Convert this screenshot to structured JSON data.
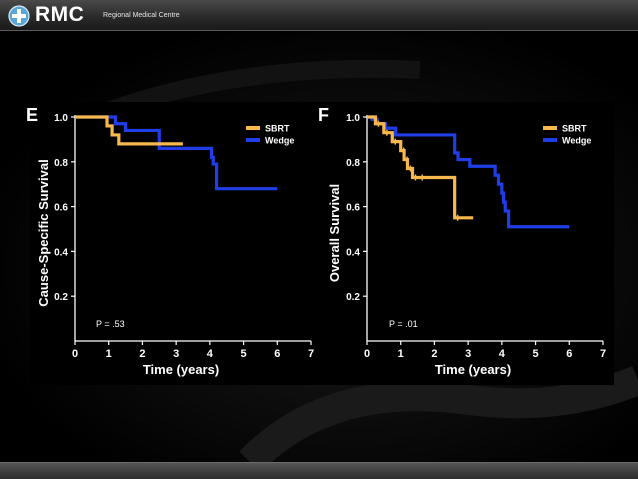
{
  "header": {
    "brand": "RMC",
    "brand_subtitle": "Regional Medical Centre",
    "logo_icon": "cross-badge-icon"
  },
  "theme": {
    "sbrt_color": "#F7B94D",
    "wedge_color": "#1F3EE8",
    "axis_color": "#FFFFFF",
    "background": "#000000"
  },
  "chart_data": [
    {
      "type": "line",
      "step": true,
      "panel_label": "E",
      "ylabel": "Cause-Specific Survival",
      "xlabel": "Time (years)",
      "xlim": [
        0,
        7
      ],
      "ylim": [
        0,
        1.0
      ],
      "xticks": [
        "0",
        "1",
        "2",
        "3",
        "4",
        "5",
        "6",
        "7"
      ],
      "yticks": [
        "0.2",
        "0.4",
        "0.6",
        "0.8",
        "1.0"
      ],
      "pvalue": "P = .53",
      "legend_position": "top-right",
      "series": [
        {
          "name": "SBRT",
          "color": "#F7B94D",
          "x": [
            0,
            0.95,
            1.1,
            1.3,
            2.55,
            3.2
          ],
          "y": [
            1.0,
            0.96,
            0.92,
            0.88,
            0.88,
            0.88
          ]
        },
        {
          "name": "Wedge",
          "color": "#1F3EE8",
          "x": [
            0,
            1.2,
            1.5,
            2.0,
            2.5,
            4.05,
            4.1,
            4.2,
            6.0
          ],
          "y": [
            1.0,
            0.97,
            0.94,
            0.94,
            0.86,
            0.82,
            0.79,
            0.68,
            0.68
          ]
        }
      ]
    },
    {
      "type": "line",
      "step": true,
      "panel_label": "F",
      "ylabel": "Overall Survival",
      "xlabel": "Time (years)",
      "xlim": [
        0,
        7
      ],
      "ylim": [
        0,
        1.0
      ],
      "xticks": [
        "0",
        "1",
        "2",
        "3",
        "4",
        "5",
        "6",
        "7"
      ],
      "yticks": [
        "0.2",
        "0.4",
        "0.6",
        "0.8",
        "1.0"
      ],
      "pvalue": "P = .01",
      "legend_position": "top-right",
      "series": [
        {
          "name": "SBRT",
          "color": "#F7B94D",
          "x": [
            0,
            0.25,
            0.5,
            0.75,
            1.0,
            1.1,
            1.2,
            1.35,
            1.55,
            2.6,
            3.15
          ],
          "y": [
            1.0,
            0.97,
            0.93,
            0.89,
            0.85,
            0.81,
            0.77,
            0.73,
            0.73,
            0.55,
            0.55
          ],
          "markers": true
        },
        {
          "name": "Wedge",
          "color": "#1F3EE8",
          "x": [
            0,
            0.15,
            0.3,
            0.55,
            0.85,
            1.25,
            1.55,
            2.6,
            2.7,
            2.85,
            3.05,
            3.4,
            3.8,
            3.9,
            4.0,
            4.05,
            4.1,
            4.2,
            6.0
          ],
          "y": [
            1.0,
            0.99,
            0.97,
            0.95,
            0.92,
            0.92,
            0.92,
            0.84,
            0.81,
            0.81,
            0.78,
            0.78,
            0.74,
            0.7,
            0.66,
            0.62,
            0.58,
            0.51,
            0.51
          ]
        }
      ]
    }
  ]
}
